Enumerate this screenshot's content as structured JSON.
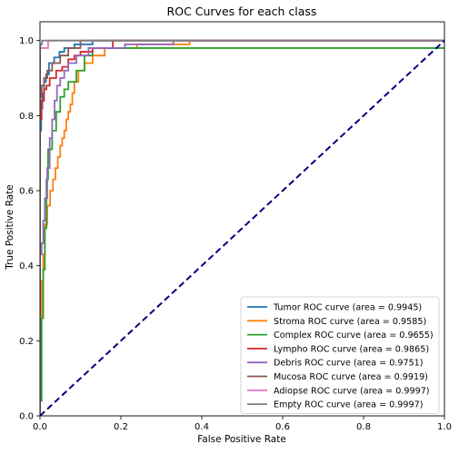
{
  "chart_data": {
    "type": "line",
    "title": "ROC Curves for each class",
    "xlabel": "False Positive Rate",
    "ylabel": "True Positive Rate",
    "xlim": [
      0.0,
      1.0
    ],
    "ylim": [
      0.0,
      1.05
    ],
    "xticks": [
      "0.0",
      "0.2",
      "0.4",
      "0.6",
      "0.8",
      "1.0"
    ],
    "yticks": [
      "0.0",
      "0.2",
      "0.4",
      "0.6",
      "0.8",
      "1.0"
    ],
    "grid": false,
    "legend_position": "lower right",
    "diagonal": {
      "x": [
        0.0,
        1.0
      ],
      "y": [
        0.0,
        1.0
      ],
      "color": "#00007f",
      "style": "dashed"
    },
    "series": [
      {
        "name": "Tumor ROC curve (area = 0.9945)",
        "color": "#1f77b4",
        "x": [
          0.0,
          0.0,
          0.003,
          0.003,
          0.006,
          0.006,
          0.01,
          0.01,
          0.015,
          0.015,
          0.022,
          0.022,
          0.035,
          0.035,
          0.048,
          0.048,
          0.06,
          0.06,
          0.085,
          0.085,
          0.13,
          0.13,
          1.0
        ],
        "y": [
          0.0,
          0.76,
          0.76,
          0.82,
          0.82,
          0.86,
          0.86,
          0.89,
          0.89,
          0.91,
          0.91,
          0.94,
          0.94,
          0.955,
          0.955,
          0.97,
          0.97,
          0.98,
          0.98,
          0.99,
          0.99,
          1.0,
          1.0
        ]
      },
      {
        "name": "Stroma ROC curve (area = 0.9585)",
        "color": "#ff7f0e",
        "x": [
          0.0,
          0.0,
          0.004,
          0.004,
          0.008,
          0.008,
          0.012,
          0.012,
          0.018,
          0.018,
          0.025,
          0.025,
          0.032,
          0.032,
          0.038,
          0.038,
          0.044,
          0.044,
          0.05,
          0.05,
          0.055,
          0.055,
          0.06,
          0.06,
          0.065,
          0.065,
          0.07,
          0.07,
          0.075,
          0.075,
          0.08,
          0.08,
          0.085,
          0.085,
          0.095,
          0.095,
          0.11,
          0.11,
          0.13,
          0.13,
          0.16,
          0.16,
          0.24,
          0.24,
          0.37,
          0.37,
          1.0
        ],
        "y": [
          0.0,
          0.26,
          0.26,
          0.36,
          0.36,
          0.43,
          0.43,
          0.51,
          0.51,
          0.56,
          0.56,
          0.6,
          0.6,
          0.63,
          0.63,
          0.66,
          0.66,
          0.69,
          0.69,
          0.72,
          0.72,
          0.74,
          0.74,
          0.76,
          0.76,
          0.79,
          0.79,
          0.81,
          0.81,
          0.83,
          0.83,
          0.86,
          0.86,
          0.89,
          0.89,
          0.92,
          0.92,
          0.94,
          0.94,
          0.96,
          0.96,
          0.98,
          0.98,
          0.99,
          0.99,
          1.0,
          1.0
        ]
      },
      {
        "name": "Complex ROC curve (area = 0.9655)",
        "color": "#2ca02c",
        "x": [
          0.0,
          0.0,
          0.004,
          0.004,
          0.008,
          0.008,
          0.012,
          0.012,
          0.016,
          0.016,
          0.02,
          0.02,
          0.03,
          0.03,
          0.04,
          0.04,
          0.05,
          0.05,
          0.06,
          0.06,
          0.07,
          0.07,
          0.09,
          0.09,
          0.11,
          0.11,
          0.13,
          0.13,
          1.0
        ],
        "y": [
          0.0,
          0.04,
          0.04,
          0.26,
          0.26,
          0.39,
          0.39,
          0.5,
          0.5,
          0.63,
          0.63,
          0.71,
          0.71,
          0.76,
          0.76,
          0.81,
          0.81,
          0.85,
          0.85,
          0.87,
          0.87,
          0.89,
          0.89,
          0.92,
          0.92,
          0.96,
          0.96,
          0.98,
          0.98
        ]
      },
      {
        "name": "Lympho ROC curve (area = 0.9865)",
        "color": "#d62728",
        "x": [
          0.0,
          0.0,
          0.004,
          0.004,
          0.01,
          0.01,
          0.016,
          0.016,
          0.024,
          0.024,
          0.04,
          0.04,
          0.055,
          0.055,
          0.07,
          0.07,
          0.085,
          0.085,
          0.1,
          0.1,
          0.13,
          0.13,
          0.18,
          0.18,
          1.0
        ],
        "y": [
          0.0,
          0.79,
          0.79,
          0.84,
          0.84,
          0.87,
          0.87,
          0.88,
          0.88,
          0.9,
          0.9,
          0.92,
          0.92,
          0.93,
          0.93,
          0.95,
          0.95,
          0.96,
          0.96,
          0.97,
          0.97,
          0.98,
          0.98,
          1.0,
          1.0
        ]
      },
      {
        "name": "Debris ROC curve (area = 0.9751)",
        "color": "#9467bd",
        "x": [
          0.0,
          0.0,
          0.004,
          0.004,
          0.008,
          0.008,
          0.012,
          0.012,
          0.018,
          0.018,
          0.024,
          0.024,
          0.03,
          0.03,
          0.036,
          0.036,
          0.042,
          0.042,
          0.05,
          0.05,
          0.06,
          0.06,
          0.07,
          0.07,
          0.09,
          0.09,
          0.12,
          0.12,
          0.21,
          0.21,
          0.33,
          0.33,
          1.0
        ],
        "y": [
          0.0,
          0.43,
          0.43,
          0.46,
          0.46,
          0.52,
          0.52,
          0.58,
          0.58,
          0.66,
          0.66,
          0.74,
          0.74,
          0.79,
          0.79,
          0.84,
          0.84,
          0.88,
          0.88,
          0.9,
          0.9,
          0.92,
          0.92,
          0.94,
          0.94,
          0.96,
          0.96,
          0.98,
          0.98,
          0.99,
          0.99,
          1.0,
          1.0
        ]
      },
      {
        "name": "Mucosa ROC curve (area = 0.9919)",
        "color": "#8c564b",
        "x": [
          0.0,
          0.0,
          0.004,
          0.004,
          0.01,
          0.01,
          0.018,
          0.018,
          0.03,
          0.03,
          0.05,
          0.05,
          0.07,
          0.07,
          0.1,
          0.1,
          1.0
        ],
        "y": [
          0.0,
          0.85,
          0.85,
          0.88,
          0.88,
          0.9,
          0.9,
          0.92,
          0.92,
          0.94,
          0.94,
          0.96,
          0.96,
          0.98,
          0.98,
          1.0,
          1.0
        ]
      },
      {
        "name": "Adiopse ROC curve (area = 0.9997)",
        "color": "#e377c2",
        "x": [
          0.0,
          0.0,
          0.02,
          0.02,
          1.0
        ],
        "y": [
          0.0,
          0.98,
          0.98,
          1.0,
          1.0
        ]
      },
      {
        "name": "Empty ROC curve (area = 0.9997)",
        "color": "#7f7f7f",
        "x": [
          0.0,
          0.0,
          0.005,
          0.005,
          1.0
        ],
        "y": [
          0.0,
          0.99,
          0.99,
          1.0,
          1.0
        ]
      }
    ]
  }
}
